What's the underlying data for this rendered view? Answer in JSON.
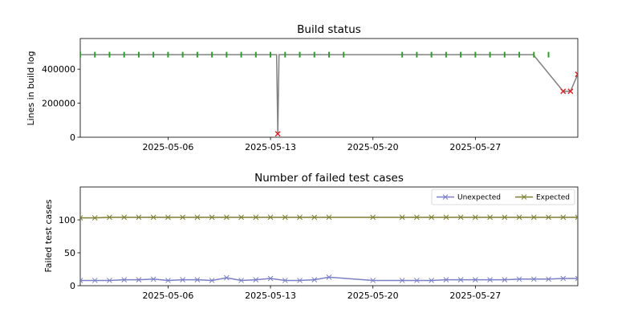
{
  "chart_data": [
    {
      "type": "line",
      "title": "Build status",
      "xlabel": "",
      "ylabel": "Lines in build log",
      "xlim": [
        "2025-04-30",
        "2025-06-03"
      ],
      "ylim": [
        0,
        580000
      ],
      "xticks": [
        "2025-05-06",
        "2025-05-13",
        "2025-05-20",
        "2025-05-27"
      ],
      "yticks": [
        0,
        200000,
        400000
      ],
      "grid": false,
      "colors": {
        "line": "#808080",
        "success": "#2ca02c",
        "failure": "#d62728"
      },
      "series": [
        {
          "x": [
            "2025-04-30",
            "2025-05-13 10:00",
            "2025-05-13 12:00",
            "2025-05-13 14:00",
            "2025-05-30 23:00",
            "2025-06-02",
            "2025-06-02 12:00",
            "2025-06-03"
          ],
          "values": [
            485000,
            485000,
            20000,
            485000,
            485000,
            270000,
            270000,
            370000
          ]
        }
      ],
      "success_points": {
        "x": [
          "2025-04-30",
          "2025-05-01",
          "2025-05-02",
          "2025-05-03",
          "2025-05-04",
          "2025-05-05",
          "2025-05-06",
          "2025-05-07",
          "2025-05-08",
          "2025-05-09",
          "2025-05-10",
          "2025-05-11",
          "2025-05-12",
          "2025-05-13",
          "2025-05-14",
          "2025-05-15",
          "2025-05-16",
          "2025-05-17",
          "2025-05-18",
          "2025-05-22",
          "2025-05-23",
          "2025-05-24",
          "2025-05-25",
          "2025-05-26",
          "2025-05-27",
          "2025-05-28",
          "2025-05-29",
          "2025-05-30",
          "2025-05-31",
          "2025-06-01"
        ],
        "values": [
          485000,
          485000,
          485000,
          485000,
          485000,
          485000,
          485000,
          485000,
          485000,
          485000,
          485000,
          485000,
          485000,
          485000,
          485000,
          485000,
          485000,
          485000,
          485000,
          485000,
          485000,
          485000,
          485000,
          485000,
          485000,
          485000,
          485000,
          485000,
          485000,
          485000
        ]
      },
      "failure_points": {
        "x": [
          "2025-05-13 12:00",
          "2025-06-02",
          "2025-06-02 12:00",
          "2025-06-03"
        ],
        "values": [
          20000,
          270000,
          270000,
          370000
        ]
      }
    },
    {
      "type": "line",
      "title": "Number of failed test cases",
      "xlabel": "",
      "ylabel": "Failed test cases",
      "xlim": [
        "2025-04-30",
        "2025-06-03"
      ],
      "ylim": [
        0,
        150
      ],
      "xticks": [
        "2025-05-06",
        "2025-05-13",
        "2025-05-20",
        "2025-05-27"
      ],
      "yticks": [
        0,
        50,
        100
      ],
      "grid": false,
      "legend": "top-right",
      "series": [
        {
          "name": "Unexpected",
          "color": "#7b7fc4",
          "x": [
            "2025-04-30",
            "2025-05-01",
            "2025-05-02",
            "2025-05-03",
            "2025-05-04",
            "2025-05-05",
            "2025-05-06",
            "2025-05-07",
            "2025-05-08",
            "2025-05-09",
            "2025-05-10",
            "2025-05-11",
            "2025-05-12",
            "2025-05-13",
            "2025-05-14",
            "2025-05-15",
            "2025-05-16",
            "2025-05-17",
            "2025-05-20",
            "2025-05-22",
            "2025-05-23",
            "2025-05-24",
            "2025-05-25",
            "2025-05-26",
            "2025-05-27",
            "2025-05-28",
            "2025-05-29",
            "2025-05-30",
            "2025-05-31",
            "2025-06-01",
            "2025-06-02",
            "2025-06-03"
          ],
          "values": [
            8,
            8,
            8,
            9,
            9,
            10,
            8,
            9,
            9,
            8,
            12,
            8,
            9,
            11,
            8,
            8,
            9,
            13,
            8,
            8,
            8,
            8,
            9,
            9,
            9,
            9,
            9,
            10,
            10,
            10,
            11,
            11
          ]
        },
        {
          "name": "Expected",
          "color": "#7d7d32",
          "x": [
            "2025-04-30",
            "2025-05-01",
            "2025-05-02",
            "2025-05-03",
            "2025-05-04",
            "2025-05-05",
            "2025-05-06",
            "2025-05-07",
            "2025-05-08",
            "2025-05-09",
            "2025-05-10",
            "2025-05-11",
            "2025-05-12",
            "2025-05-13",
            "2025-05-14",
            "2025-05-15",
            "2025-05-16",
            "2025-05-17",
            "2025-05-20",
            "2025-05-22",
            "2025-05-23",
            "2025-05-24",
            "2025-05-25",
            "2025-05-26",
            "2025-05-27",
            "2025-05-28",
            "2025-05-29",
            "2025-05-30",
            "2025-05-31",
            "2025-06-01",
            "2025-06-02",
            "2025-06-03"
          ],
          "values": [
            103,
            103,
            104,
            104,
            104,
            104,
            104,
            104,
            104,
            104,
            104,
            104,
            104,
            104,
            104,
            104,
            104,
            104,
            104,
            104,
            104,
            104,
            104,
            104,
            104,
            104,
            104,
            104,
            104,
            104,
            104,
            104
          ]
        }
      ]
    }
  ]
}
